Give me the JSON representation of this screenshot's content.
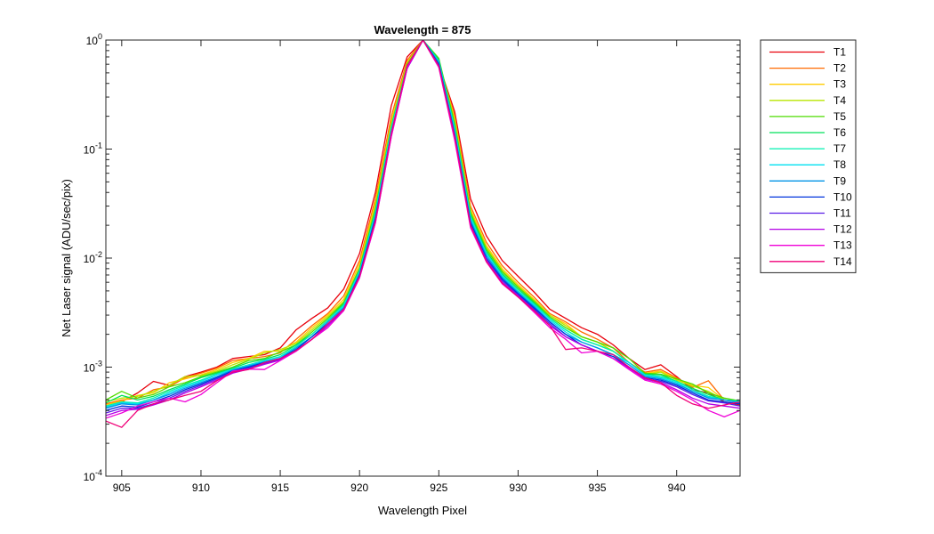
{
  "chart_data": {
    "type": "line",
    "title": "Wavelength = 875",
    "xlabel": "Wavelength Pixel",
    "ylabel": "Net Laser signal  (ADU/sec/pix)",
    "xlim": [
      904,
      944
    ],
    "ylim": [
      0.0001,
      1
    ],
    "yscale": "log",
    "xticks": [
      905,
      910,
      915,
      920,
      925,
      930,
      935,
      940
    ],
    "xtick_labels": [
      "905",
      "910",
      "915",
      "920",
      "925",
      "930",
      "935",
      "940"
    ],
    "yticks": [
      0.0001,
      0.001,
      0.01,
      0.1,
      1
    ],
    "ytick_labels": [
      {
        "base": "10",
        "exp": "-4"
      },
      {
        "base": "10",
        "exp": "-3"
      },
      {
        "base": "10",
        "exp": "-2"
      },
      {
        "base": "10",
        "exp": "-1"
      },
      {
        "base": "10",
        "exp": "0"
      }
    ],
    "grid": false,
    "legend_position": "outside-right",
    "x": [
      904,
      905,
      906,
      907,
      908,
      909,
      910,
      911,
      912,
      913,
      914,
      915,
      916,
      917,
      918,
      919,
      920,
      921,
      922,
      923,
      924,
      925,
      926,
      927,
      928,
      929,
      930,
      931,
      932,
      933,
      934,
      935,
      936,
      937,
      938,
      939,
      940,
      941,
      942,
      943,
      944
    ],
    "series": [
      {
        "name": "T1",
        "color": "#e8000b",
        "values": [
          0.00042,
          0.00048,
          0.00058,
          0.00074,
          0.00068,
          0.00082,
          0.0009,
          0.001,
          0.0012,
          0.00125,
          0.0013,
          0.0015,
          0.0022,
          0.0028,
          0.0035,
          0.0052,
          0.011,
          0.04,
          0.25,
          0.7,
          1.0,
          0.6,
          0.22,
          0.035,
          0.016,
          0.0095,
          0.0068,
          0.0049,
          0.0034,
          0.0028,
          0.0023,
          0.002,
          0.0016,
          0.0012,
          0.00095,
          0.00105,
          0.00082,
          0.00062,
          0.00058,
          0.00048,
          0.00045
        ]
      },
      {
        "name": "T2",
        "color": "#ff6a00",
        "values": [
          0.00046,
          0.0005,
          0.00052,
          0.00062,
          0.00066,
          0.0008,
          0.00088,
          0.00098,
          0.00115,
          0.0012,
          0.00125,
          0.00135,
          0.0018,
          0.0024,
          0.0031,
          0.0045,
          0.0095,
          0.035,
          0.2,
          0.65,
          1.0,
          0.62,
          0.2,
          0.03,
          0.014,
          0.0085,
          0.006,
          0.0044,
          0.0031,
          0.0026,
          0.0021,
          0.0018,
          0.0015,
          0.0011,
          0.0009,
          0.00095,
          0.0008,
          0.00065,
          0.00075,
          0.0005,
          0.00047
        ]
      },
      {
        "name": "T3",
        "color": "#ffcc00",
        "values": [
          0.00045,
          0.00049,
          0.00055,
          0.00058,
          0.00072,
          0.00078,
          0.00085,
          0.00095,
          0.0011,
          0.0012,
          0.0014,
          0.0014,
          0.0017,
          0.0023,
          0.003,
          0.0042,
          0.0088,
          0.032,
          0.18,
          0.62,
          1.0,
          0.63,
          0.19,
          0.028,
          0.013,
          0.008,
          0.0057,
          0.0042,
          0.003,
          0.0025,
          0.0019,
          0.0017,
          0.0014,
          0.0011,
          0.00088,
          0.00092,
          0.00078,
          0.00068,
          0.00065,
          0.0005,
          0.00048
        ]
      },
      {
        "name": "T4",
        "color": "#b8e600",
        "values": [
          0.00048,
          0.00052,
          0.00054,
          0.0006,
          0.00068,
          0.00082,
          0.00084,
          0.00092,
          0.00105,
          0.00118,
          0.00135,
          0.00145,
          0.00165,
          0.0022,
          0.0029,
          0.004,
          0.0082,
          0.03,
          0.17,
          0.6,
          1.0,
          0.65,
          0.18,
          0.027,
          0.0125,
          0.0077,
          0.0055,
          0.0041,
          0.003,
          0.0024,
          0.0019,
          0.0017,
          0.0014,
          0.0011,
          0.00086,
          0.0009,
          0.00076,
          0.00067,
          0.0006,
          0.0005,
          0.00048
        ]
      },
      {
        "name": "T5",
        "color": "#4fdc00",
        "values": [
          0.0005,
          0.0006,
          0.00052,
          0.00056,
          0.00066,
          0.00072,
          0.00082,
          0.0009,
          0.001,
          0.00115,
          0.0012,
          0.00138,
          0.0016,
          0.0021,
          0.0028,
          0.0039,
          0.008,
          0.028,
          0.16,
          0.6,
          1.0,
          0.68,
          0.17,
          0.026,
          0.012,
          0.0075,
          0.0054,
          0.004,
          0.0029,
          0.0023,
          0.0019,
          0.0017,
          0.0015,
          0.0012,
          0.00088,
          0.00086,
          0.00078,
          0.0007,
          0.00058,
          0.00052,
          0.00049
        ]
      },
      {
        "name": "T6",
        "color": "#00e05a",
        "values": [
          0.00047,
          0.00055,
          0.0005,
          0.00054,
          0.00062,
          0.0007,
          0.0008,
          0.00088,
          0.00098,
          0.0011,
          0.00118,
          0.0013,
          0.0016,
          0.002,
          0.0027,
          0.0038,
          0.0078,
          0.027,
          0.16,
          0.58,
          1.0,
          0.66,
          0.16,
          0.025,
          0.0115,
          0.0072,
          0.0052,
          0.0039,
          0.0028,
          0.0022,
          0.0018,
          0.0016,
          0.0014,
          0.0011,
          0.00086,
          0.00085,
          0.00074,
          0.00064,
          0.00056,
          0.0005,
          0.00049
        ]
      },
      {
        "name": "T7",
        "color": "#00f0b0",
        "values": [
          0.00044,
          0.00048,
          0.00047,
          0.00052,
          0.0006,
          0.00068,
          0.00076,
          0.00086,
          0.00096,
          0.00105,
          0.00115,
          0.00125,
          0.00155,
          0.002,
          0.0027,
          0.0037,
          0.0076,
          0.026,
          0.155,
          0.58,
          1.0,
          0.64,
          0.155,
          0.024,
          0.011,
          0.007,
          0.005,
          0.0038,
          0.0028,
          0.0022,
          0.0018,
          0.0016,
          0.0014,
          0.0011,
          0.00085,
          0.00082,
          0.00074,
          0.00062,
          0.00054,
          0.0005,
          0.00048
        ]
      },
      {
        "name": "T8",
        "color": "#00e0f0",
        "values": [
          0.00043,
          0.00047,
          0.00046,
          0.0005,
          0.00058,
          0.00066,
          0.00074,
          0.00085,
          0.00095,
          0.00104,
          0.00114,
          0.00124,
          0.0015,
          0.0019,
          0.0026,
          0.0036,
          0.0074,
          0.025,
          0.15,
          0.57,
          1.0,
          0.63,
          0.15,
          0.023,
          0.011,
          0.0068,
          0.0049,
          0.0037,
          0.0027,
          0.0021,
          0.0017,
          0.0015,
          0.0013,
          0.0011,
          0.00084,
          0.0008,
          0.00072,
          0.0006,
          0.00053,
          0.0005,
          0.00048
        ]
      },
      {
        "name": "T9",
        "color": "#0094e6",
        "values": [
          0.00042,
          0.00046,
          0.00045,
          0.0005,
          0.00056,
          0.00064,
          0.00072,
          0.00082,
          0.00094,
          0.00102,
          0.00112,
          0.0012,
          0.0015,
          0.0019,
          0.0026,
          0.0035,
          0.0072,
          0.024,
          0.14,
          0.56,
          1.0,
          0.62,
          0.14,
          0.022,
          0.0105,
          0.0066,
          0.0048,
          0.0036,
          0.0026,
          0.002,
          0.0017,
          0.0015,
          0.0013,
          0.00105,
          0.00082,
          0.00078,
          0.0007,
          0.0006,
          0.00052,
          0.0005,
          0.00047
        ]
      },
      {
        "name": "T10",
        "color": "#0033dd",
        "values": [
          0.0004,
          0.00044,
          0.00043,
          0.00048,
          0.00054,
          0.00062,
          0.0007,
          0.0008,
          0.00092,
          0.001,
          0.0011,
          0.0012,
          0.00145,
          0.0019,
          0.0025,
          0.0034,
          0.007,
          0.023,
          0.14,
          0.55,
          1.0,
          0.6,
          0.135,
          0.021,
          0.01,
          0.0064,
          0.0047,
          0.0035,
          0.0026,
          0.002,
          0.0016,
          0.0014,
          0.00125,
          0.001,
          0.0008,
          0.00076,
          0.00068,
          0.00058,
          0.0005,
          0.00048,
          0.00046
        ]
      },
      {
        "name": "T11",
        "color": "#5a1ee6",
        "values": [
          0.00038,
          0.00042,
          0.00042,
          0.00046,
          0.00052,
          0.0006,
          0.00068,
          0.00078,
          0.0009,
          0.00098,
          0.00108,
          0.00118,
          0.00142,
          0.0018,
          0.0024,
          0.0034,
          0.0068,
          0.022,
          0.135,
          0.55,
          1.0,
          0.58,
          0.13,
          0.02,
          0.0098,
          0.0062,
          0.0046,
          0.0034,
          0.0025,
          0.0019,
          0.0016,
          0.0014,
          0.0012,
          0.001,
          0.00078,
          0.00074,
          0.00066,
          0.00056,
          0.00049,
          0.00047,
          0.00044
        ]
      },
      {
        "name": "T12",
        "color": "#b400e6",
        "values": [
          0.00036,
          0.0004,
          0.00041,
          0.00045,
          0.0005,
          0.00058,
          0.00066,
          0.00076,
          0.00088,
          0.00096,
          0.00106,
          0.00116,
          0.0014,
          0.0018,
          0.0024,
          0.0033,
          0.0066,
          0.021,
          0.13,
          0.55,
          1.0,
          0.57,
          0.125,
          0.0195,
          0.0095,
          0.006,
          0.0045,
          0.0033,
          0.0024,
          0.0019,
          0.0016,
          0.0014,
          0.0012,
          0.00098,
          0.00078,
          0.00072,
          0.00062,
          0.00052,
          0.00046,
          0.00044,
          0.00042
        ]
      },
      {
        "name": "T13",
        "color": "#f000d8",
        "values": [
          0.00034,
          0.00038,
          0.00044,
          0.00048,
          0.00052,
          0.00048,
          0.00056,
          0.00072,
          0.00092,
          0.00096,
          0.00095,
          0.00115,
          0.0014,
          0.0018,
          0.0023,
          0.0033,
          0.0066,
          0.021,
          0.13,
          0.56,
          1.0,
          0.56,
          0.12,
          0.019,
          0.0092,
          0.0058,
          0.0044,
          0.0032,
          0.0023,
          0.0018,
          0.00135,
          0.0014,
          0.0012,
          0.00095,
          0.00076,
          0.0007,
          0.0006,
          0.0005,
          0.0004,
          0.00035,
          0.0004
        ]
      },
      {
        "name": "T14",
        "color": "#f00078",
        "values": [
          0.00032,
          0.00028,
          0.0004,
          0.00046,
          0.0005,
          0.00055,
          0.0006,
          0.00075,
          0.0009,
          0.00095,
          0.0011,
          0.0012,
          0.00142,
          0.0018,
          0.0025,
          0.0034,
          0.0068,
          0.022,
          0.14,
          0.58,
          1.0,
          0.58,
          0.13,
          0.02,
          0.0093,
          0.0059,
          0.0044,
          0.0033,
          0.0024,
          0.00145,
          0.0015,
          0.0014,
          0.0013,
          0.001,
          0.0008,
          0.00072,
          0.00055,
          0.00046,
          0.00042,
          0.00045,
          0.00048
        ]
      }
    ]
  }
}
